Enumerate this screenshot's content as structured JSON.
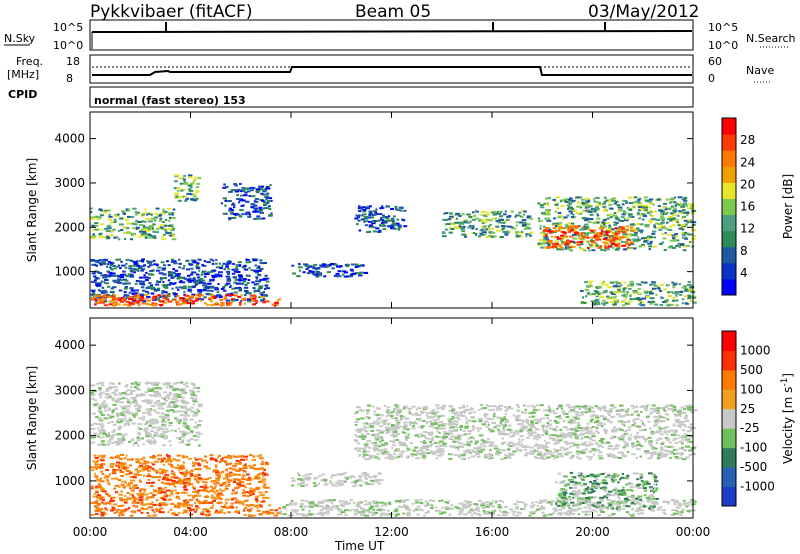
{
  "header": {
    "station": "Pykkvibaer (fitACF)",
    "beam": "Beam 05",
    "date": "03/May/2012"
  },
  "panels": {
    "nsky_label": "N.Sky",
    "nsearch_label": "N.Search",
    "nsky_ticks": [
      "10^5",
      "10^0"
    ],
    "nsearch_ticks": [
      "10^5",
      "10^0"
    ],
    "freq_label_1": "Freq.",
    "freq_label_2": "[MHz]",
    "freq_ticks": [
      "18",
      "8"
    ],
    "nave_label": "Nave",
    "nave_ticks": [
      "60",
      "0"
    ],
    "cpid_label": "CPID",
    "cpid_text": "normal (fast stereo) 153"
  },
  "chart_data": [
    {
      "type": "heatmap",
      "name": "power",
      "ylabel": "Slant Range [km]",
      "xlabel": "",
      "x_ticks": [
        "00:00",
        "04:00",
        "08:00",
        "12:00",
        "16:00",
        "20:00",
        "00:00"
      ],
      "y_ticks": [
        "1000",
        "2000",
        "3000",
        "4000"
      ],
      "xlim_hours": [
        0,
        24
      ],
      "ylim_km": [
        180,
        4600
      ],
      "colorbar": {
        "label": "Power [dB]",
        "ticks": [
          "28",
          "24",
          "20",
          "16",
          "12",
          "8",
          "4"
        ],
        "colors": [
          "#0000ff",
          "#0a32c8",
          "#1e5aa0",
          "#2e8b57",
          "#4aa080",
          "#7cc850",
          "#e6e628",
          "#f0a000",
          "#ff7800",
          "#ff3c00",
          "#ff0000"
        ]
      },
      "regions": [
        {
          "t": [
            0.0,
            3.3
          ],
          "r": [
            1750,
            2450
          ],
          "level": "medium"
        },
        {
          "t": [
            3.3,
            4.3
          ],
          "r": [
            2600,
            3200
          ],
          "level": "medium"
        },
        {
          "t": [
            5.2,
            7.2
          ],
          "r": [
            2200,
            3000
          ],
          "level": "low"
        },
        {
          "t": [
            0.0,
            7.0
          ],
          "r": [
            350,
            1300
          ],
          "level": "low"
        },
        {
          "t": [
            8.0,
            11.0
          ],
          "r": [
            900,
            1200
          ],
          "level": "low"
        },
        {
          "t": [
            10.5,
            12.5
          ],
          "r": [
            1900,
            2500
          ],
          "level": "low"
        },
        {
          "t": [
            14.0,
            17.5
          ],
          "r": [
            1800,
            2400
          ],
          "level": "medium"
        },
        {
          "t": [
            17.8,
            24.0
          ],
          "r": [
            1500,
            2700
          ],
          "level": "medium"
        },
        {
          "t": [
            18.0,
            21.5
          ],
          "r": [
            1550,
            2050
          ],
          "level": "high"
        },
        {
          "t": [
            0.0,
            7.5
          ],
          "r": [
            250,
            500
          ],
          "level": "high"
        },
        {
          "t": [
            19.5,
            24.0
          ],
          "r": [
            250,
            800
          ],
          "level": "medium"
        }
      ]
    },
    {
      "type": "heatmap",
      "name": "velocity",
      "ylabel": "Slant Range [km]",
      "xlabel": "Time UT",
      "x_ticks": [
        "00:00",
        "04:00",
        "08:00",
        "12:00",
        "16:00",
        "20:00",
        "00:00"
      ],
      "y_ticks": [
        "1000",
        "2000",
        "3000",
        "4000"
      ],
      "xlim_hours": [
        0,
        24
      ],
      "ylim_km": [
        180,
        4600
      ],
      "colorbar": {
        "label": "Velocity [m s",
        "label_sup": "-1",
        "label_end": "]",
        "ticks": [
          "1000",
          "500",
          "100",
          "25",
          "-25",
          "-100",
          "-500",
          "-1000"
        ],
        "colors": [
          "#1e3cc8",
          "#2860b4",
          "#2e7d5a",
          "#6fbf5a",
          "#c8c8c8",
          "#f0a020",
          "#ff7a00",
          "#ff3000",
          "#ff0000"
        ]
      },
      "regions": [
        {
          "t": [
            0.0,
            4.3
          ],
          "r": [
            1800,
            3200
          ],
          "level": "gray"
        },
        {
          "t": [
            0.0,
            7.0
          ],
          "r": [
            500,
            1600
          ],
          "level": "orange"
        },
        {
          "t": [
            0.0,
            7.5
          ],
          "r": [
            250,
            500
          ],
          "level": "orange"
        },
        {
          "t": [
            7.5,
            24.0
          ],
          "r": [
            250,
            600
          ],
          "level": "gray"
        },
        {
          "t": [
            8.0,
            11.5
          ],
          "r": [
            900,
            1200
          ],
          "level": "gray"
        },
        {
          "t": [
            10.5,
            24.0
          ],
          "r": [
            1500,
            2700
          ],
          "level": "gray"
        },
        {
          "t": [
            18.5,
            22.5
          ],
          "r": [
            400,
            1200
          ],
          "level": "green"
        }
      ]
    }
  ]
}
